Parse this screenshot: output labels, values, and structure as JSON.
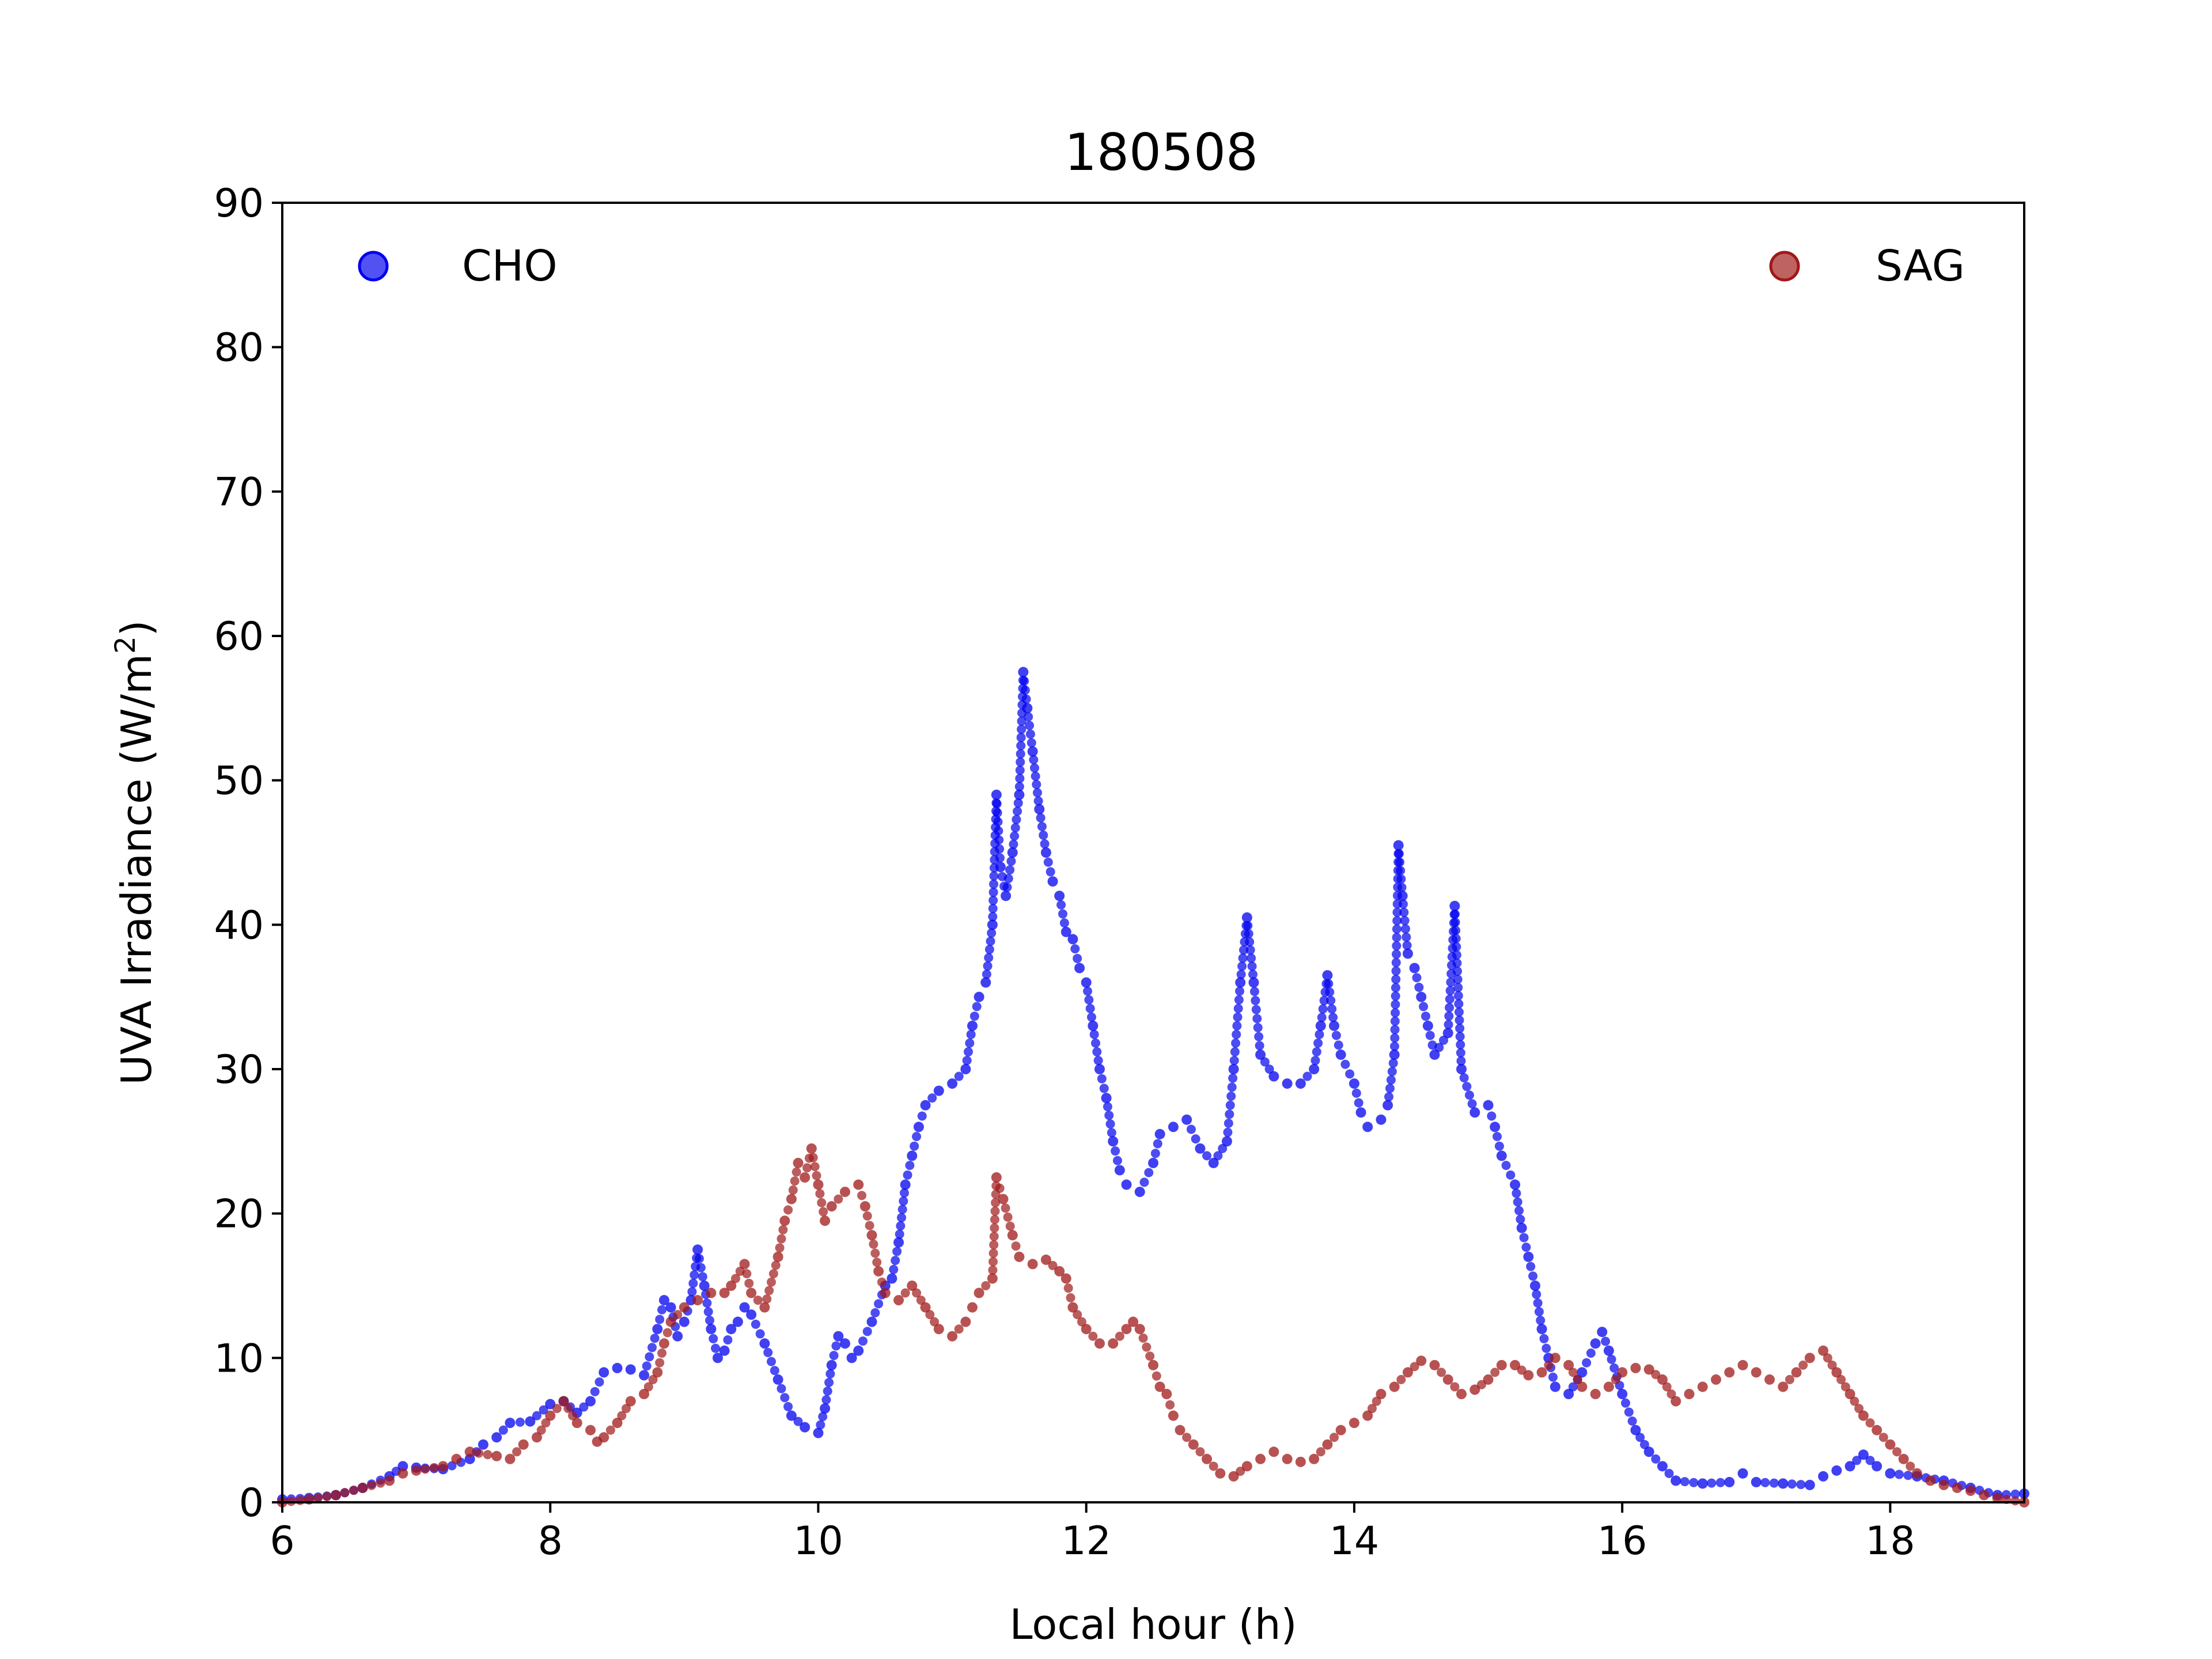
{
  "chart_data": {
    "type": "scatter",
    "title": "180508",
    "xlabel": "Local hour (h)",
    "ylabel_main": "UVA Irradiance (W/m",
    "ylabel_sup": "2",
    "ylabel_tail": ")",
    "xlim": [
      6,
      19
    ],
    "ylim": [
      0,
      90
    ],
    "xticks": [
      "6",
      "8",
      "10",
      "12",
      "14",
      "16",
      "18"
    ],
    "yticks": [
      "0",
      "10",
      "20",
      "30",
      "40",
      "50",
      "60",
      "70",
      "80",
      "90"
    ],
    "grid": false,
    "legend": [
      {
        "name": "CHO",
        "placement": "top-left"
      },
      {
        "name": "SAG",
        "placement": "top-right"
      }
    ],
    "series": [
      {
        "name": "CHO",
        "color": "#0000ee",
        "points": [
          [
            6.0,
            0.2
          ],
          [
            6.2,
            0.3
          ],
          [
            6.4,
            0.5
          ],
          [
            6.6,
            1.0
          ],
          [
            6.8,
            1.8
          ],
          [
            6.9,
            2.5
          ],
          [
            7.0,
            2.4
          ],
          [
            7.2,
            2.3
          ],
          [
            7.4,
            3.0
          ],
          [
            7.5,
            4.0
          ],
          [
            7.6,
            4.5
          ],
          [
            7.7,
            5.5
          ],
          [
            7.85,
            5.6
          ],
          [
            8.0,
            6.8
          ],
          [
            8.1,
            7.0
          ],
          [
            8.2,
            6.2
          ],
          [
            8.3,
            7.0
          ],
          [
            8.4,
            9.0
          ],
          [
            8.5,
            9.3
          ],
          [
            8.6,
            9.2
          ],
          [
            8.7,
            8.8
          ],
          [
            8.8,
            12.0
          ],
          [
            8.85,
            14.0
          ],
          [
            8.9,
            13.5
          ],
          [
            8.95,
            11.5
          ],
          [
            9.0,
            12.5
          ],
          [
            9.05,
            14.0
          ],
          [
            9.1,
            17.5
          ],
          [
            9.15,
            15.0
          ],
          [
            9.2,
            12.0
          ],
          [
            9.25,
            10.0
          ],
          [
            9.3,
            10.5
          ],
          [
            9.35,
            12.0
          ],
          [
            9.4,
            12.5
          ],
          [
            9.45,
            13.5
          ],
          [
            9.5,
            13.0
          ],
          [
            9.6,
            11.0
          ],
          [
            9.7,
            8.5
          ],
          [
            9.8,
            6.0
          ],
          [
            9.9,
            5.2
          ],
          [
            10.0,
            4.8
          ],
          [
            10.05,
            6.5
          ],
          [
            10.1,
            9.5
          ],
          [
            10.15,
            11.5
          ],
          [
            10.2,
            11.0
          ],
          [
            10.25,
            10.0
          ],
          [
            10.3,
            10.5
          ],
          [
            10.4,
            12.5
          ],
          [
            10.5,
            15.0
          ],
          [
            10.55,
            15.5
          ],
          [
            10.6,
            18.0
          ],
          [
            10.65,
            22.0
          ],
          [
            10.7,
            24.0
          ],
          [
            10.75,
            26.0
          ],
          [
            10.8,
            27.5
          ],
          [
            10.9,
            28.5
          ],
          [
            11.0,
            29.0
          ],
          [
            11.1,
            30.0
          ],
          [
            11.15,
            33.0
          ],
          [
            11.2,
            35.0
          ],
          [
            11.25,
            36.0
          ],
          [
            11.3,
            40.0
          ],
          [
            11.33,
            49.0
          ],
          [
            11.36,
            44.0
          ],
          [
            11.4,
            42.0
          ],
          [
            11.45,
            45.0
          ],
          [
            11.5,
            49.0
          ],
          [
            11.53,
            57.5
          ],
          [
            11.56,
            55.0
          ],
          [
            11.6,
            52.0
          ],
          [
            11.65,
            48.0
          ],
          [
            11.7,
            45.0
          ],
          [
            11.75,
            43.0
          ],
          [
            11.8,
            42.0
          ],
          [
            11.85,
            39.5
          ],
          [
            11.9,
            39.0
          ],
          [
            11.95,
            37.0
          ],
          [
            12.0,
            36.0
          ],
          [
            12.05,
            33.0
          ],
          [
            12.1,
            30.0
          ],
          [
            12.15,
            28.0
          ],
          [
            12.2,
            25.0
          ],
          [
            12.25,
            23.0
          ],
          [
            12.3,
            22.0
          ],
          [
            12.4,
            21.5
          ],
          [
            12.5,
            23.5
          ],
          [
            12.55,
            25.5
          ],
          [
            12.65,
            26.0
          ],
          [
            12.75,
            26.5
          ],
          [
            12.85,
            24.5
          ],
          [
            12.95,
            23.5
          ],
          [
            13.05,
            25.0
          ],
          [
            13.1,
            30.0
          ],
          [
            13.15,
            36.0
          ],
          [
            13.2,
            40.5
          ],
          [
            13.25,
            36.0
          ],
          [
            13.3,
            31.0
          ],
          [
            13.4,
            29.5
          ],
          [
            13.5,
            29.0
          ],
          [
            13.6,
            29.0
          ],
          [
            13.7,
            30.0
          ],
          [
            13.75,
            33.0
          ],
          [
            13.8,
            36.5
          ],
          [
            13.85,
            33.0
          ],
          [
            13.9,
            31.0
          ],
          [
            14.0,
            29.0
          ],
          [
            14.05,
            27.0
          ],
          [
            14.1,
            26.0
          ],
          [
            14.2,
            26.5
          ],
          [
            14.25,
            27.5
          ],
          [
            14.3,
            31.0
          ],
          [
            14.33,
            45.5
          ],
          [
            14.36,
            42.0
          ],
          [
            14.4,
            38.0
          ],
          [
            14.45,
            37.0
          ],
          [
            14.5,
            35.0
          ],
          [
            14.55,
            33.0
          ],
          [
            14.6,
            31.0
          ],
          [
            14.7,
            32.5
          ],
          [
            14.75,
            41.3
          ],
          [
            14.8,
            30.0
          ],
          [
            14.9,
            27.0
          ],
          [
            15.0,
            27.5
          ],
          [
            15.05,
            26.0
          ],
          [
            15.1,
            24.0
          ],
          [
            15.2,
            22.0
          ],
          [
            15.25,
            19.0
          ],
          [
            15.3,
            17.0
          ],
          [
            15.35,
            15.0
          ],
          [
            15.4,
            12.0
          ],
          [
            15.45,
            10.0
          ],
          [
            15.5,
            8.0
          ],
          [
            15.6,
            7.5
          ],
          [
            15.7,
            9.0
          ],
          [
            15.8,
            11.0
          ],
          [
            15.85,
            11.8
          ],
          [
            15.9,
            10.5
          ],
          [
            16.0,
            7.5
          ],
          [
            16.1,
            5.0
          ],
          [
            16.2,
            3.5
          ],
          [
            16.3,
            2.5
          ],
          [
            16.4,
            1.5
          ],
          [
            16.6,
            1.3
          ],
          [
            16.8,
            1.4
          ],
          [
            16.9,
            2.0
          ],
          [
            17.0,
            1.4
          ],
          [
            17.2,
            1.3
          ],
          [
            17.4,
            1.2
          ],
          [
            17.5,
            1.8
          ],
          [
            17.6,
            2.2
          ],
          [
            17.7,
            2.5
          ],
          [
            17.8,
            3.3
          ],
          [
            17.9,
            2.5
          ],
          [
            18.0,
            2.0
          ],
          [
            18.2,
            1.8
          ],
          [
            18.4,
            1.5
          ],
          [
            18.6,
            1.0
          ],
          [
            18.8,
            0.5
          ],
          [
            19.0,
            0.6
          ]
        ]
      },
      {
        "name": "SAG",
        "color": "#a01818",
        "points": [
          [
            6.0,
            0.0
          ],
          [
            6.2,
            0.2
          ],
          [
            6.4,
            0.5
          ],
          [
            6.6,
            1.0
          ],
          [
            6.8,
            1.5
          ],
          [
            6.9,
            2.0
          ],
          [
            7.0,
            2.2
          ],
          [
            7.2,
            2.5
          ],
          [
            7.3,
            3.0
          ],
          [
            7.4,
            3.5
          ],
          [
            7.6,
            3.2
          ],
          [
            7.7,
            3.0
          ],
          [
            7.8,
            4.0
          ],
          [
            7.9,
            4.5
          ],
          [
            8.0,
            6.0
          ],
          [
            8.1,
            7.0
          ],
          [
            8.2,
            5.5
          ],
          [
            8.3,
            5.0
          ],
          [
            8.35,
            4.2
          ],
          [
            8.4,
            4.5
          ],
          [
            8.5,
            5.5
          ],
          [
            8.6,
            7.0
          ],
          [
            8.7,
            7.5
          ],
          [
            8.8,
            9.0
          ],
          [
            8.85,
            11.0
          ],
          [
            8.9,
            12.5
          ],
          [
            9.0,
            13.5
          ],
          [
            9.1,
            14.0
          ],
          [
            9.2,
            14.5
          ],
          [
            9.3,
            14.5
          ],
          [
            9.35,
            15.0
          ],
          [
            9.45,
            16.5
          ],
          [
            9.5,
            14.5
          ],
          [
            9.6,
            13.5
          ],
          [
            9.7,
            17.0
          ],
          [
            9.75,
            19.5
          ],
          [
            9.8,
            21.0
          ],
          [
            9.85,
            23.5
          ],
          [
            9.9,
            22.5
          ],
          [
            9.95,
            24.5
          ],
          [
            10.0,
            22.0
          ],
          [
            10.05,
            19.5
          ],
          [
            10.1,
            20.5
          ],
          [
            10.2,
            21.5
          ],
          [
            10.3,
            22.0
          ],
          [
            10.35,
            20.5
          ],
          [
            10.4,
            18.5
          ],
          [
            10.45,
            16.0
          ],
          [
            10.5,
            14.5
          ],
          [
            10.6,
            14.0
          ],
          [
            10.7,
            15.0
          ],
          [
            10.8,
            13.5
          ],
          [
            10.9,
            12.0
          ],
          [
            11.0,
            11.5
          ],
          [
            11.1,
            12.5
          ],
          [
            11.15,
            13.5
          ],
          [
            11.2,
            14.5
          ],
          [
            11.3,
            15.5
          ],
          [
            11.33,
            22.5
          ],
          [
            11.38,
            21.0
          ],
          [
            11.45,
            18.5
          ],
          [
            11.5,
            17.0
          ],
          [
            11.6,
            16.5
          ],
          [
            11.7,
            16.8
          ],
          [
            11.8,
            16.0
          ],
          [
            11.85,
            15.5
          ],
          [
            11.9,
            13.5
          ],
          [
            12.0,
            12.0
          ],
          [
            12.1,
            11.0
          ],
          [
            12.2,
            11.0
          ],
          [
            12.3,
            12.0
          ],
          [
            12.35,
            12.5
          ],
          [
            12.4,
            12.0
          ],
          [
            12.5,
            9.5
          ],
          [
            12.55,
            8.0
          ],
          [
            12.6,
            7.5
          ],
          [
            12.65,
            6.0
          ],
          [
            12.7,
            5.0
          ],
          [
            12.8,
            4.0
          ],
          [
            12.9,
            3.0
          ],
          [
            13.0,
            2.0
          ],
          [
            13.1,
            1.8
          ],
          [
            13.2,
            2.5
          ],
          [
            13.3,
            3.0
          ],
          [
            13.4,
            3.5
          ],
          [
            13.5,
            3.0
          ],
          [
            13.6,
            2.8
          ],
          [
            13.7,
            3.0
          ],
          [
            13.8,
            4.0
          ],
          [
            13.9,
            5.0
          ],
          [
            14.0,
            5.5
          ],
          [
            14.1,
            6.0
          ],
          [
            14.2,
            7.5
          ],
          [
            14.3,
            8.0
          ],
          [
            14.4,
            9.0
          ],
          [
            14.5,
            9.8
          ],
          [
            14.6,
            9.5
          ],
          [
            14.7,
            8.5
          ],
          [
            14.8,
            7.5
          ],
          [
            14.9,
            7.8
          ],
          [
            15.0,
            8.5
          ],
          [
            15.1,
            9.5
          ],
          [
            15.2,
            9.5
          ],
          [
            15.3,
            8.8
          ],
          [
            15.4,
            9.0
          ],
          [
            15.5,
            10.0
          ],
          [
            15.6,
            9.5
          ],
          [
            15.7,
            8.0
          ],
          [
            15.8,
            7.5
          ],
          [
            15.9,
            8.0
          ],
          [
            16.0,
            9.0
          ],
          [
            16.1,
            9.3
          ],
          [
            16.2,
            9.2
          ],
          [
            16.3,
            8.5
          ],
          [
            16.4,
            7.0
          ],
          [
            16.5,
            7.5
          ],
          [
            16.6,
            8.0
          ],
          [
            16.7,
            8.5
          ],
          [
            16.8,
            9.0
          ],
          [
            16.9,
            9.5
          ],
          [
            17.0,
            9.0
          ],
          [
            17.1,
            8.5
          ],
          [
            17.2,
            8.0
          ],
          [
            17.3,
            9.0
          ],
          [
            17.4,
            10.0
          ],
          [
            17.5,
            10.5
          ],
          [
            17.6,
            9.0
          ],
          [
            17.7,
            7.5
          ],
          [
            17.8,
            6.0
          ],
          [
            17.9,
            5.0
          ],
          [
            18.0,
            4.0
          ],
          [
            18.1,
            3.0
          ],
          [
            18.2,
            2.0
          ],
          [
            18.3,
            1.5
          ],
          [
            18.4,
            1.2
          ],
          [
            18.5,
            1.0
          ],
          [
            18.6,
            0.8
          ],
          [
            18.7,
            0.5
          ],
          [
            18.8,
            0.3
          ],
          [
            19.0,
            0.0
          ]
        ]
      }
    ]
  }
}
